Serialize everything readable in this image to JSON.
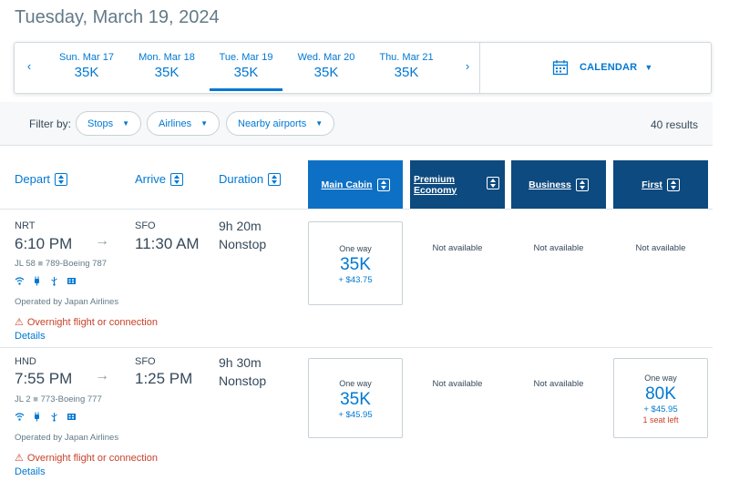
{
  "page_title": "Tuesday, March 19, 2024",
  "date_strip": {
    "prev_icon": "chevron-left-icon",
    "next_icon": "chevron-right-icon",
    "dates": [
      {
        "label": "Sun. Mar 17",
        "price": "35K"
      },
      {
        "label": "Mon. Mar 18",
        "price": "35K"
      },
      {
        "label": "Tue. Mar 19",
        "price": "35K"
      },
      {
        "label": "Wed. Mar 20",
        "price": "35K"
      },
      {
        "label": "Thu. Mar 21",
        "price": "35K"
      }
    ],
    "active_index": 2,
    "calendar_label": "CALENDAR",
    "calendar_icon": "calendar-icon"
  },
  "filters": {
    "label": "Filter by:",
    "pills": [
      "Stops",
      "Airlines",
      "Nearby airports"
    ],
    "results": "40 results"
  },
  "columns": {
    "depart": "Depart",
    "arrive": "Arrive",
    "duration": "Duration",
    "cabins": [
      "Main Cabin",
      "Premium Economy",
      "Business",
      "First"
    ]
  },
  "flights": [
    {
      "origin": "NRT",
      "depart_time": "6:10 PM",
      "destination": "SFO",
      "arrive_time": "11:30 AM",
      "duration": "9h 20m",
      "stops": "Nonstop",
      "flight_info": "JL 58",
      "aircraft": "789-Boeing 787",
      "operated_by": "Operated by Japan Airlines",
      "warning": "Overnight flight or connection",
      "details": "Details",
      "fares": {
        "main": {
          "label": "One way",
          "price": "35K",
          "tax": "+ $43.75"
        },
        "premium": "Not available",
        "business": "Not available",
        "first": "Not available"
      }
    },
    {
      "origin": "HND",
      "depart_time": "7:55 PM",
      "destination": "SFO",
      "arrive_time": "1:25 PM",
      "duration": "9h 30m",
      "stops": "Nonstop",
      "flight_info": "JL 2",
      "aircraft": "773-Boeing 777",
      "operated_by": "Operated by Japan Airlines",
      "warning": "Overnight flight or connection",
      "details": "Details",
      "fares": {
        "main": {
          "label": "One way",
          "price": "35K",
          "tax": "+ $45.95"
        },
        "premium": "Not available",
        "business": "Not available",
        "first": {
          "label": "One way",
          "price": "80K",
          "tax": "+ $45.95",
          "seats": "1 seat left"
        }
      }
    }
  ],
  "amenity_icons": [
    "wifi-icon",
    "power-icon",
    "usb-icon",
    "entertainment-icon"
  ],
  "colors": {
    "accent": "#0078d2",
    "main_cabin": "#0e70c4",
    "premium_cabin": "#0d4a7f",
    "warning": "#c9412b"
  }
}
